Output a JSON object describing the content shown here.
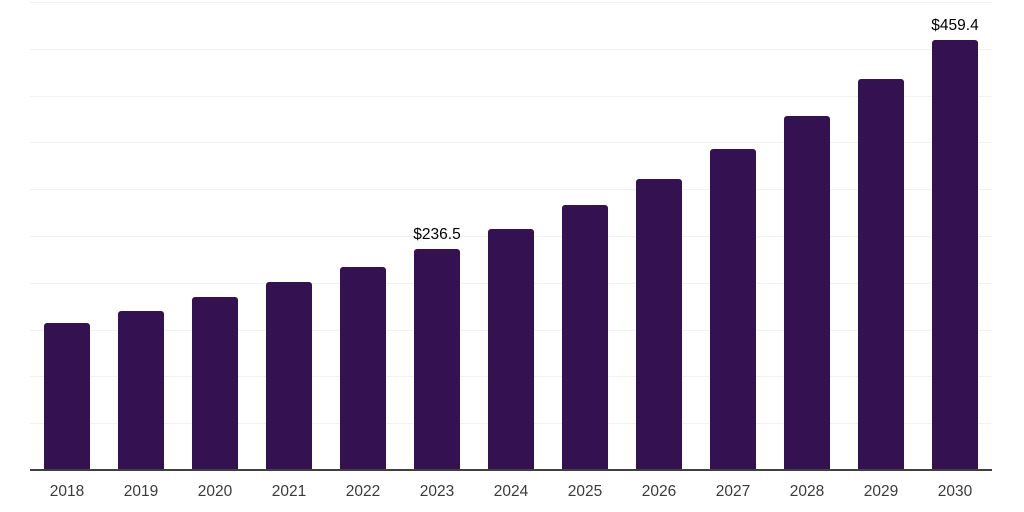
{
  "chart_data": {
    "type": "bar",
    "title": "",
    "xlabel": "",
    "ylabel": "",
    "categories": [
      "2018",
      "2019",
      "2020",
      "2021",
      "2022",
      "2023",
      "2024",
      "2025",
      "2026",
      "2027",
      "2028",
      "2029",
      "2030"
    ],
    "values": [
      157.4,
      170.0,
      184.8,
      200.5,
      217.2,
      236.5,
      257.2,
      283.1,
      310.9,
      343.0,
      378.6,
      417.7,
      459.4
    ],
    "bar_labels": {
      "2023": "$236.5",
      "2030": "$459.4"
    },
    "ylim": [
      0,
      500
    ],
    "gridline_step": 50,
    "grid_on": true,
    "legend": "none",
    "colors": {
      "bar": "#341150",
      "gridline": "#f2f2f2",
      "axis_line": "#404040",
      "tick_label": "#3a3a3a",
      "value_label": "#000000",
      "background": "#ffffff"
    }
  }
}
